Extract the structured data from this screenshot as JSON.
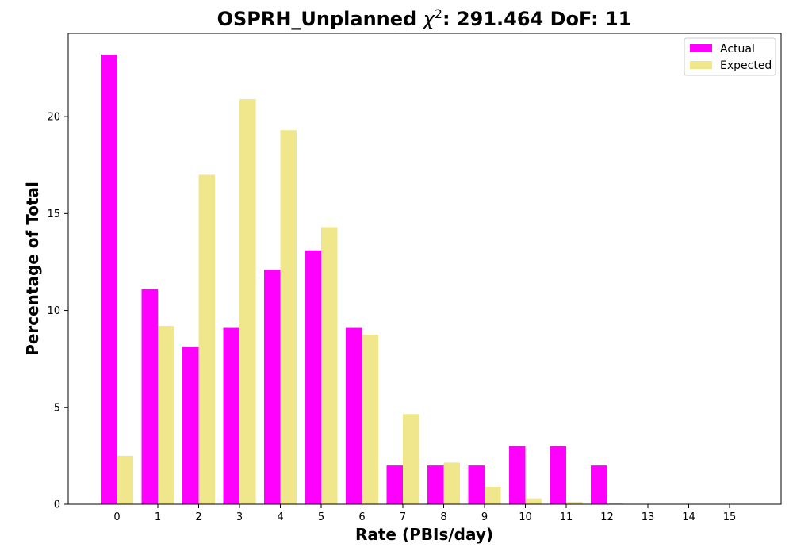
{
  "chart_data": {
    "type": "bar",
    "title_prefix": "OSPRH_Unplanned ",
    "title_chi_symbol": "χ",
    "title_chi_exponent": "2",
    "title_suffix": ": 291.464 DoF: 11",
    "xlabel": "Rate (PBIs/day)",
    "ylabel": "Percentage of Total",
    "categories": [
      "0",
      "1",
      "2",
      "3",
      "4",
      "5",
      "6",
      "7",
      "8",
      "9",
      "10",
      "11",
      "12",
      "13",
      "14",
      "15"
    ],
    "series": [
      {
        "name": "Actual",
        "color": "#ff00ff",
        "values": [
          23.2,
          11.1,
          8.1,
          9.1,
          12.1,
          13.1,
          9.1,
          2.0,
          2.0,
          2.0,
          3.0,
          3.0,
          2.0,
          0,
          0,
          0
        ]
      },
      {
        "name": "Expected",
        "color": "#f0e68c",
        "values": [
          2.5,
          9.2,
          17.0,
          20.9,
          19.3,
          14.3,
          8.75,
          4.65,
          2.15,
          0.9,
          0.3,
          0.12,
          0.04,
          0.01,
          0,
          0
        ]
      }
    ],
    "yticks": [
      "0",
      "5",
      "10",
      "15",
      "20"
    ],
    "ylim": [
      0,
      24.3
    ],
    "legend_position": "top-right",
    "grid": false
  }
}
